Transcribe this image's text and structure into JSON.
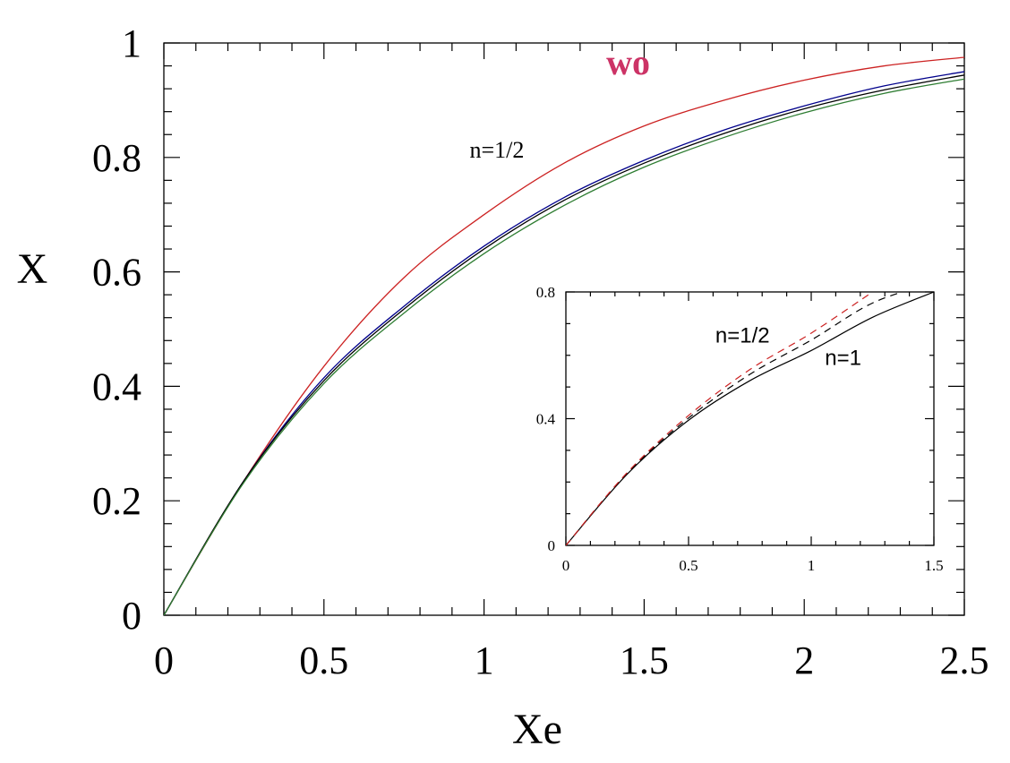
{
  "chart_data": [
    {
      "type": "line",
      "xlabel": "Xe",
      "ylabel": "X",
      "xlim": [
        0,
        2.5
      ],
      "ylim": [
        0,
        1
      ],
      "xticks": [
        "0",
        "0.5",
        "1",
        "1.5",
        "2",
        "2.5"
      ],
      "yticks": [
        "0",
        "0.2",
        "0.4",
        "0.6",
        "0.8",
        "1"
      ],
      "grid": false,
      "annotations": [
        {
          "text": "wo",
          "x": 1.45,
          "y": 0.945,
          "color": "#cc3366"
        },
        {
          "text": "n=1/2",
          "x": 1.04,
          "y": 0.8,
          "color": "#000000"
        }
      ],
      "series": [
        {
          "color": "#cc2222",
          "x": [
            0,
            0.25,
            0.5,
            0.75,
            1.0,
            1.25,
            1.5,
            1.75,
            2.0,
            2.25,
            2.5
          ],
          "y": [
            0,
            0.235,
            0.435,
            0.59,
            0.7,
            0.79,
            0.855,
            0.9,
            0.935,
            0.96,
            0.975
          ]
        },
        {
          "color": "#00008b",
          "x": [
            0,
            0.25,
            0.5,
            0.75,
            1.0,
            1.25,
            1.5,
            1.75,
            2.0,
            2.25,
            2.5
          ],
          "y": [
            0,
            0.235,
            0.415,
            0.54,
            0.645,
            0.73,
            0.795,
            0.848,
            0.89,
            0.925,
            0.95
          ]
        },
        {
          "color": "#000000",
          "x": [
            0,
            0.25,
            0.5,
            0.75,
            1.0,
            1.25,
            1.5,
            1.75,
            2.0,
            2.25,
            2.5
          ],
          "y": [
            0,
            0.235,
            0.41,
            0.535,
            0.64,
            0.725,
            0.79,
            0.842,
            0.885,
            0.918,
            0.944
          ]
        },
        {
          "color": "#2e7d32",
          "x": [
            0,
            0.25,
            0.5,
            0.75,
            1.0,
            1.25,
            1.5,
            1.75,
            2.0,
            2.25,
            2.5
          ],
          "y": [
            0,
            0.232,
            0.405,
            0.528,
            0.632,
            0.716,
            0.783,
            0.835,
            0.878,
            0.912,
            0.937
          ]
        }
      ]
    },
    {
      "type": "line",
      "xlim": [
        0,
        1.5
      ],
      "ylim": [
        0,
        0.8
      ],
      "xticks": [
        "0",
        "0.5",
        "1",
        "1.5"
      ],
      "yticks": [
        "0",
        "0.4",
        "0.8"
      ],
      "grid": false,
      "annotations": [
        {
          "text": "n=1/2",
          "x": 0.72,
          "y": 0.64,
          "color": "#000000"
        },
        {
          "text": "n=1",
          "x": 1.13,
          "y": 0.57,
          "color": "#000000"
        }
      ],
      "series": [
        {
          "color": "#000000",
          "dash": "solid",
          "x": [
            0,
            0.25,
            0.5,
            0.75,
            1.0,
            1.25,
            1.5
          ],
          "y": [
            0,
            0.225,
            0.395,
            0.52,
            0.615,
            0.72,
            0.8
          ]
        },
        {
          "color": "#000000",
          "dash": "dashed",
          "x": [
            0,
            0.25,
            0.5,
            0.75,
            1.0,
            1.25,
            1.5
          ],
          "y": [
            0,
            0.228,
            0.402,
            0.54,
            0.648,
            0.765,
            0.83
          ]
        },
        {
          "color": "#cc2222",
          "dash": "dashed",
          "x": [
            0,
            0.25,
            0.5,
            0.75,
            1.0,
            1.25
          ],
          "y": [
            0,
            0.23,
            0.41,
            0.555,
            0.67,
            0.8
          ]
        }
      ]
    }
  ]
}
